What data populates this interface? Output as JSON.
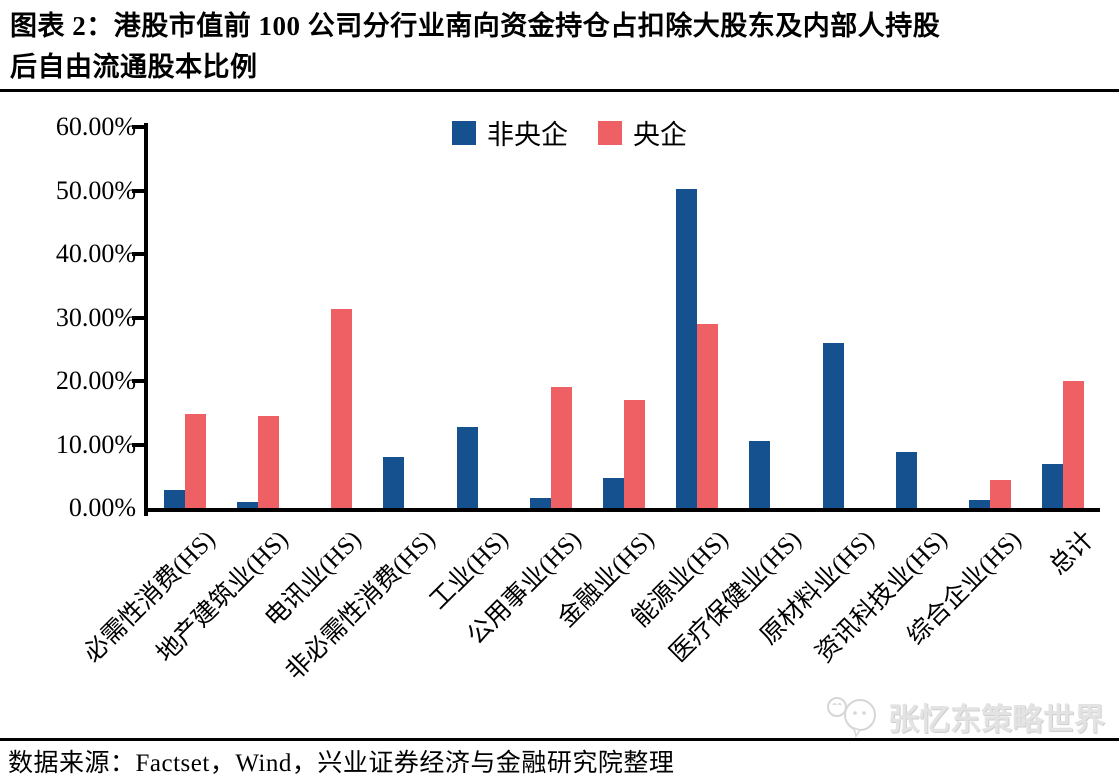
{
  "figure": {
    "title_line1": "图表 2：港股市值前 100 公司分行业南向资金持仓占扣除大股东及内部人持股",
    "title_line2": "后自由流通股本比例"
  },
  "legend": {
    "items": [
      {
        "label": "非央企",
        "color": "#15508F"
      },
      {
        "label": "央企",
        "color": "#EE6064"
      }
    ]
  },
  "chart_data": {
    "type": "bar",
    "title": "港股市值前100公司分行业南向资金持仓占扣除大股东及内部人持股后自由流通股本比例",
    "categories": [
      "必需性消费(HS)",
      "地产建筑业(HS)",
      "电讯业(HS)",
      "非必需性消费(HS)",
      "工业(HS)",
      "公用事业(HS)",
      "金融业(HS)",
      "能源业(HS)",
      "医疗保健业(HS)",
      "原材料业(HS)",
      "资讯科技业(HS)",
      "综合企业(HS)",
      "总计"
    ],
    "series": [
      {
        "name": "非央企",
        "color": "#15508F",
        "values": [
          2.8,
          0.9,
          0,
          8.0,
          12.7,
          1.5,
          4.7,
          50.3,
          10.6,
          26.0,
          8.8,
          1.2,
          7.0
        ]
      },
      {
        "name": "央企",
        "color": "#EE6064",
        "values": [
          14.8,
          14.5,
          31.4,
          0,
          0,
          19.0,
          17.0,
          29.0,
          0,
          0,
          0,
          4.4,
          20.0
        ]
      }
    ],
    "xlabel": "",
    "ylabel": "",
    "ylim": [
      0,
      60
    ],
    "ytick_labels": [
      "60.00%",
      "50.00%",
      "40.00%",
      "30.00%",
      "20.00%",
      "10.00%",
      "0.00%"
    ],
    "grid": false,
    "legend_position": "top-center",
    "unit": "percent"
  },
  "footer": {
    "source": "数据来源：Factset，Wind，兴业证券经济与金融研究院整理"
  },
  "watermark": {
    "text": "张忆东策略世界",
    "icon": "chat-mascot-icon"
  }
}
